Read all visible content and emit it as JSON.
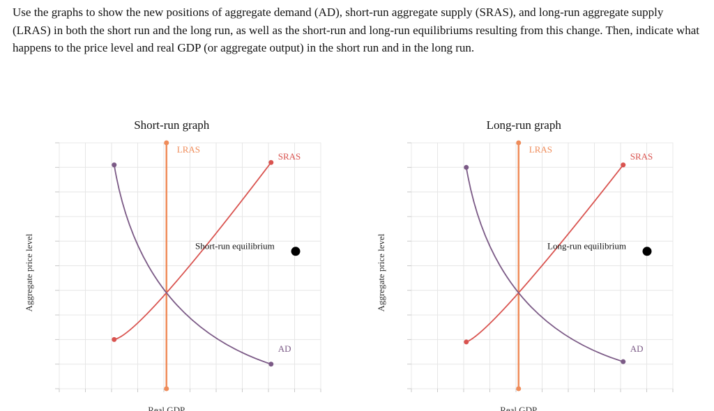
{
  "instructions": "Use the graphs to show the new positions of aggregate demand (AD), short-run aggregate supply (SRAS), and long-run aggregate supply (LRAS) in both the short run and the long run, as well as the short-run and long-run equilibriums resulting from this change. Then, indicate what happens to the price level and real GDP (or aggregate output) in the short run and in the long run.",
  "colors": {
    "lras": "#ef8c5a",
    "sras": "#d9534f",
    "ad": "#7b5a86",
    "equilibrium": "#000000"
  },
  "chart_data": [
    {
      "type": "line",
      "title": "Short-run graph",
      "xlabel": "Real GDP",
      "ylabel": "Aggregate price level",
      "grid": true,
      "series": [
        {
          "name": "LRAS",
          "points": [
            [
              4.1,
              10
            ],
            [
              4.1,
              0
            ]
          ]
        },
        {
          "name": "SRAS",
          "points": [
            [
              2.1,
              2.0
            ],
            [
              4.1,
              3.9
            ],
            [
              8.1,
              9.2
            ]
          ]
        },
        {
          "name": "AD",
          "points": [
            [
              2.1,
              9.1
            ],
            [
              4.1,
              3.9
            ],
            [
              8.1,
              1.0
            ]
          ]
        }
      ],
      "equilibrium_label": "Short-run equilibrium",
      "curve_labels": {
        "lras": "LRAS",
        "sras": "SRAS",
        "ad": "AD"
      }
    },
    {
      "type": "line",
      "title": "Long-run graph",
      "xlabel": "Real GDP",
      "ylabel": "Aggregate price level",
      "grid": true,
      "series": [
        {
          "name": "LRAS",
          "points": [
            [
              4.1,
              10
            ],
            [
              4.1,
              0
            ]
          ]
        },
        {
          "name": "SRAS",
          "points": [
            [
              2.1,
              1.9
            ],
            [
              4.1,
              3.9
            ],
            [
              8.1,
              9.1
            ]
          ]
        },
        {
          "name": "AD",
          "points": [
            [
              2.1,
              9.0
            ],
            [
              4.1,
              3.9
            ],
            [
              8.1,
              1.1
            ]
          ]
        }
      ],
      "equilibrium_label": "Long-run equilibrium",
      "curve_labels": {
        "lras": "LRAS",
        "sras": "SRAS",
        "ad": "AD"
      }
    }
  ]
}
